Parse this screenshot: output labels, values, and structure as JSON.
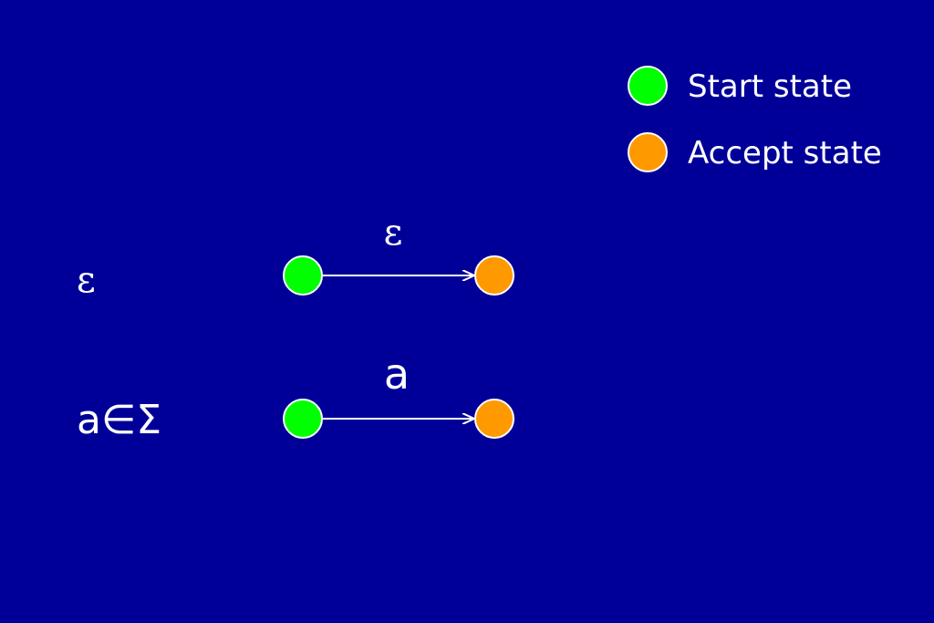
{
  "legend": {
    "start_label": "Start state",
    "accept_label": "Accept state"
  },
  "rows": [
    {
      "case_label": "ε",
      "transition_label": "ε"
    },
    {
      "case_label": "a∈Σ",
      "transition_label": "a"
    }
  ],
  "colors": {
    "background": "#000099",
    "start_state": "#00ff00",
    "accept_state": "#ff9900",
    "stroke": "#ffffff"
  }
}
